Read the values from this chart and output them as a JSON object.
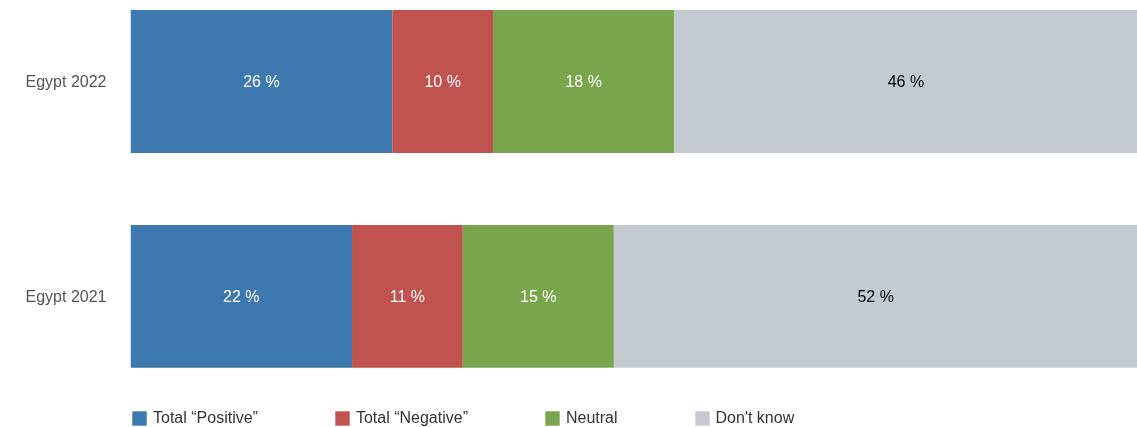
{
  "chart_data": {
    "type": "bar",
    "orientation": "horizontal",
    "stacked": true,
    "categories": [
      "Egypt 2022",
      "Egypt 2021"
    ],
    "xlim": [
      0,
      100
    ],
    "legend": "bottom",
    "grid": false,
    "series": [
      {
        "name": "Total “Positive”",
        "color": "#3d78ae",
        "values": [
          26,
          22
        ],
        "value_labels": [
          "26 %",
          "22 %"
        ]
      },
      {
        "name": "Total “Negative”",
        "color": "#c0534f",
        "values": [
          10,
          11
        ],
        "value_labels": [
          "10 %",
          "11 %"
        ]
      },
      {
        "name": "Neutral",
        "color": "#79a64c",
        "values": [
          18,
          15
        ],
        "value_labels": [
          "18 %",
          "15 %"
        ]
      },
      {
        "name": "Don't know",
        "color": "#c4cad0",
        "values": [
          46,
          52
        ],
        "value_labels": [
          "46 %",
          "52 %"
        ]
      }
    ]
  }
}
